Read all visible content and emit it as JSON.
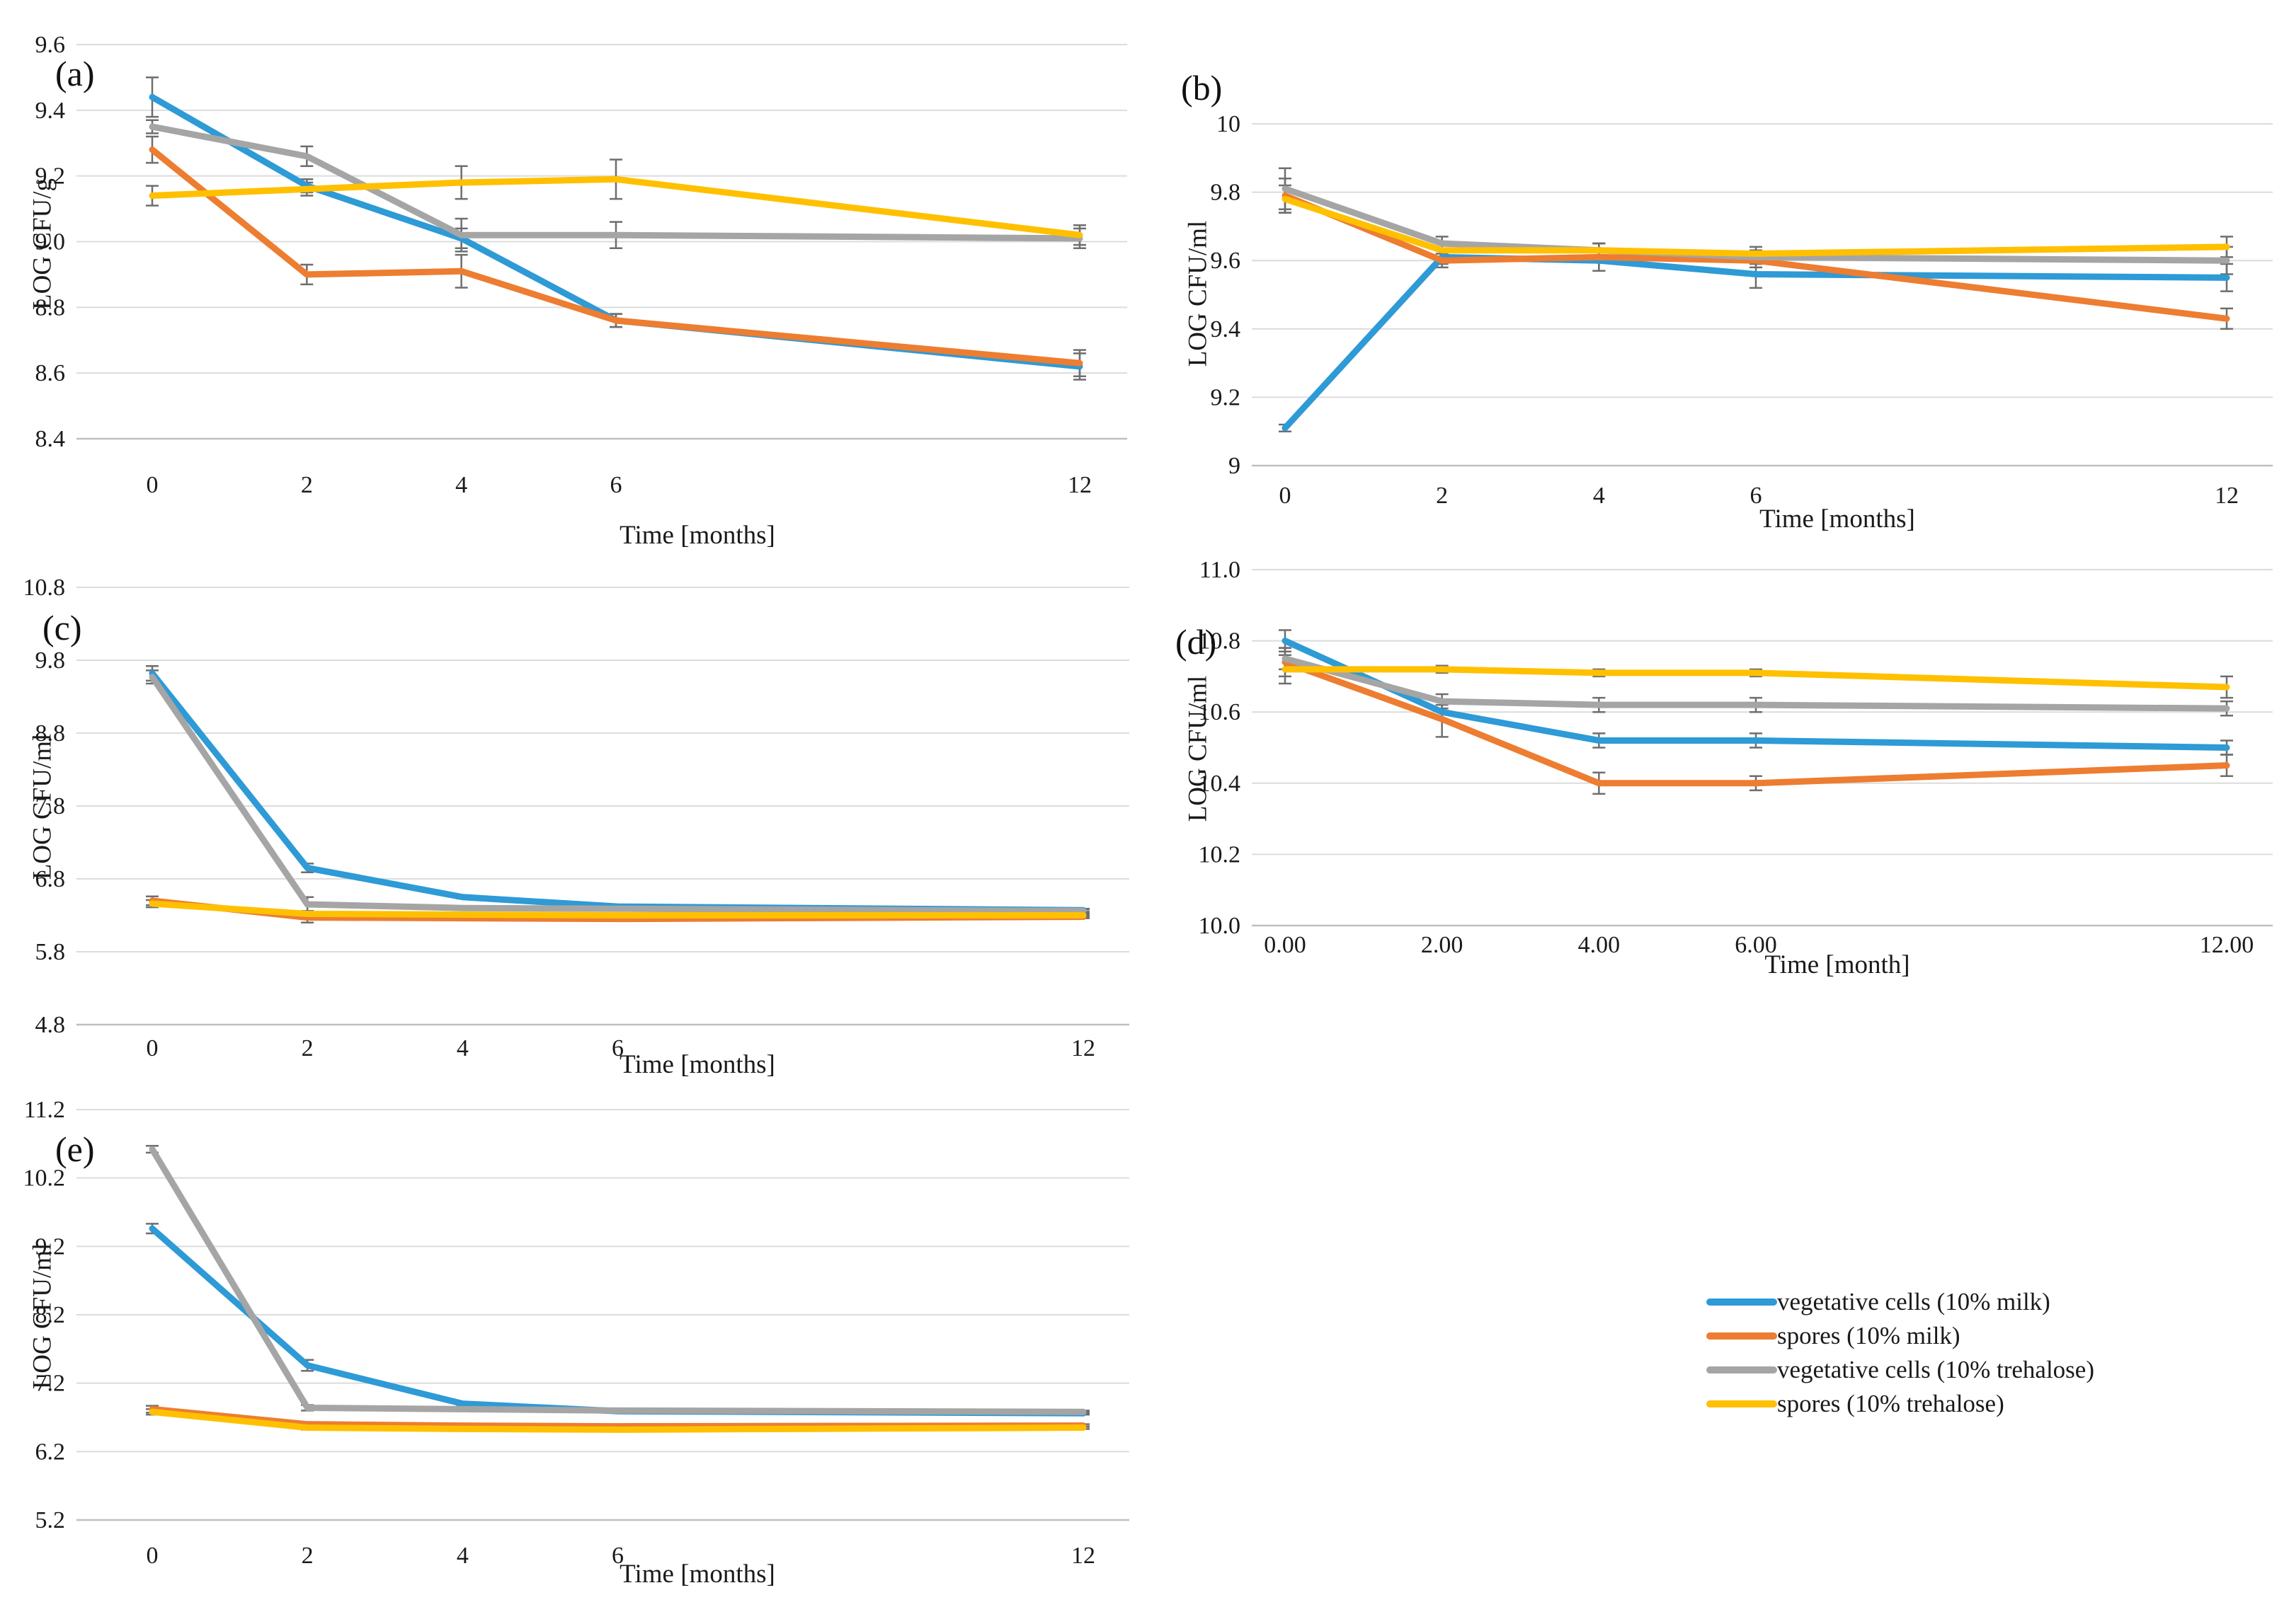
{
  "figure": {
    "background": "#ffffff",
    "description": "Five line charts (a-e) of LOG CFU counts over storage time with error bars, plus legend"
  },
  "colors": {
    "blue": "#2E9AD6",
    "orange": "#ED7D31",
    "gray": "#A5A5A5",
    "yellow": "#FFC000",
    "error_bar": "#6E6E6E",
    "gridline": "#DCDCDC",
    "axis_line": "#BFBFBF",
    "text": "#1a1a1a"
  },
  "legend": {
    "position": "bottom-right",
    "items": [
      {
        "label": "vegetative cells (10% milk)",
        "color_key": "blue"
      },
      {
        "label": "spores (10% milk)",
        "color_key": "orange"
      },
      {
        "label": "vegetative cells (10% trehalose)",
        "color_key": "gray"
      },
      {
        "label": "spores (10% trehalose)",
        "color_key": "yellow"
      }
    ]
  },
  "chart_data": [
    {
      "id": "a",
      "panel_label": "(a)",
      "type": "line",
      "ylabel": "LOG CFU/g",
      "xlabel": "Time [months]",
      "x_months": [
        0,
        2,
        4,
        6,
        12
      ],
      "x_tick_labels": [
        "0",
        "2",
        "4",
        "6",
        "12"
      ],
      "ylim": [
        8.4,
        9.6
      ],
      "y_ticks": [
        8.4,
        8.6,
        8.8,
        9.0,
        9.2,
        9.4,
        9.6
      ],
      "y_tick_labels": [
        "8.4",
        "8.6",
        "8.8",
        "9.0",
        "9.2",
        "9.4",
        "9.6"
      ],
      "grid": true,
      "series": [
        {
          "name": "vegetative cells (10% milk)",
          "color_key": "blue",
          "values": [
            9.44,
            9.17,
            9.01,
            8.76,
            8.62
          ],
          "errors": [
            0.06,
            0.02,
            0.03,
            0.02,
            0.04
          ]
        },
        {
          "name": "spores (10% milk)",
          "color_key": "orange",
          "values": [
            9.28,
            8.9,
            8.91,
            8.76,
            8.63
          ],
          "errors": [
            0.04,
            0.03,
            0.05,
            0.02,
            0.04
          ]
        },
        {
          "name": "vegetative cells (10% trehalose)",
          "color_key": "gray",
          "values": [
            9.35,
            9.26,
            9.02,
            9.02,
            9.01
          ],
          "errors": [
            0.02,
            0.03,
            0.05,
            0.04,
            0.03
          ]
        },
        {
          "name": "spores (10% trehalose)",
          "color_key": "yellow",
          "values": [
            9.14,
            9.16,
            9.18,
            9.19,
            9.02
          ],
          "errors": [
            0.03,
            0.02,
            0.05,
            0.06,
            0.03
          ]
        }
      ]
    },
    {
      "id": "b",
      "panel_label": "(b)",
      "type": "line",
      "ylabel": "LOG CFU/ml",
      "xlabel": "Time [months]",
      "x_months": [
        0,
        2,
        4,
        6,
        12
      ],
      "x_tick_labels": [
        "0",
        "2",
        "4",
        "6",
        "12"
      ],
      "ylim": [
        9.0,
        10.0
      ],
      "y_ticks": [
        9.0,
        9.2,
        9.4,
        9.6,
        9.8,
        10.0
      ],
      "y_tick_labels": [
        "9",
        "9.2",
        "9.4",
        "9.6",
        "9.8",
        "10"
      ],
      "grid": true,
      "series": [
        {
          "name": "vegetative cells (10% milk)",
          "color_key": "blue",
          "values": [
            9.11,
            9.61,
            9.6,
            9.56,
            9.55
          ],
          "errors": [
            0.01,
            0.02,
            0.03,
            0.04,
            0.04
          ]
        },
        {
          "name": "spores (10% milk)",
          "color_key": "orange",
          "values": [
            9.79,
            9.6,
            9.61,
            9.6,
            9.43
          ],
          "errors": [
            0.05,
            0.02,
            0.04,
            0.02,
            0.03
          ]
        },
        {
          "name": "vegetative cells (10% trehalose)",
          "color_key": "gray",
          "values": [
            9.81,
            9.65,
            9.63,
            9.61,
            9.6
          ],
          "errors": [
            0.06,
            0.02,
            0.02,
            0.02,
            0.04
          ]
        },
        {
          "name": "spores (10% trehalose)",
          "color_key": "yellow",
          "values": [
            9.78,
            9.63,
            9.63,
            9.62,
            9.64
          ],
          "errors": [
            0.04,
            0.02,
            0.02,
            0.02,
            0.03
          ]
        }
      ]
    },
    {
      "id": "c",
      "panel_label": "(c)",
      "type": "line",
      "ylabel": "LOG CFU/ml",
      "xlabel": "Time [months]",
      "x_months": [
        0,
        2,
        4,
        6,
        12
      ],
      "x_tick_labels": [
        "0",
        "2",
        "4",
        "6",
        "12"
      ],
      "ylim": [
        4.8,
        10.8
      ],
      "y_ticks": [
        4.8,
        5.8,
        6.8,
        7.8,
        8.8,
        9.8,
        10.8
      ],
      "y_tick_labels": [
        "4.8",
        "5.8",
        "6.8",
        "7.8",
        "8.8",
        "9.8",
        "10.8"
      ],
      "grid": true,
      "series": [
        {
          "name": "vegetative cells (10% milk)",
          "color_key": "blue",
          "values": [
            9.62,
            6.95,
            6.55,
            6.42,
            6.37
          ],
          "errors": [
            0.1,
            0.06,
            0.02,
            0.02,
            0.02
          ]
        },
        {
          "name": "spores (10% milk)",
          "color_key": "orange",
          "values": [
            6.5,
            6.27,
            6.26,
            6.25,
            6.28
          ],
          "errors": [
            0.06,
            0.07,
            0.02,
            0.02,
            0.02
          ]
        },
        {
          "name": "vegetative cells (10% trehalose)",
          "color_key": "gray",
          "values": [
            9.57,
            6.45,
            6.4,
            6.39,
            6.36
          ],
          "errors": [
            0.09,
            0.1,
            0.02,
            0.02,
            0.02
          ]
        },
        {
          "name": "spores (10% trehalose)",
          "color_key": "yellow",
          "values": [
            6.46,
            6.32,
            6.31,
            6.3,
            6.3
          ],
          "errors": [
            0.05,
            0.04,
            0.02,
            0.02,
            0.02
          ]
        }
      ]
    },
    {
      "id": "d",
      "panel_label": "(d)",
      "type": "line",
      "ylabel": "LOG CFU/ml",
      "xlabel": "Time [month]",
      "x_months": [
        0,
        2,
        4,
        6,
        12
      ],
      "x_tick_labels": [
        "0.00",
        "2.00",
        "4.00",
        "6.00",
        "12.00"
      ],
      "ylim": [
        10.0,
        11.0
      ],
      "y_ticks": [
        10.0,
        10.2,
        10.4,
        10.6,
        10.8,
        11.0
      ],
      "y_tick_labels": [
        "10.0",
        "10.2",
        "10.4",
        "10.6",
        "10.8",
        "11.0"
      ],
      "grid": true,
      "series": [
        {
          "name": "vegetative cells (10% milk)",
          "color_key": "blue",
          "values": [
            10.8,
            10.6,
            10.52,
            10.52,
            10.5
          ],
          "errors": [
            0.03,
            0.02,
            0.02,
            0.02,
            0.02
          ]
        },
        {
          "name": "spores (10% milk)",
          "color_key": "orange",
          "values": [
            10.74,
            10.58,
            10.4,
            10.4,
            10.45
          ],
          "errors": [
            0.04,
            0.05,
            0.03,
            0.02,
            0.03
          ]
        },
        {
          "name": "vegetative cells (10% trehalose)",
          "color_key": "gray",
          "values": [
            10.75,
            10.63,
            10.62,
            10.62,
            10.61
          ],
          "errors": [
            0.03,
            0.02,
            0.02,
            0.02,
            0.02
          ]
        },
        {
          "name": "spores (10% trehalose)",
          "color_key": "yellow",
          "values": [
            10.72,
            10.72,
            10.71,
            10.71,
            10.67
          ],
          "errors": [
            0.04,
            0.01,
            0.01,
            0.01,
            0.03
          ]
        }
      ]
    },
    {
      "id": "e",
      "panel_label": "(e)",
      "type": "line",
      "ylabel": "LOG CFU/ml",
      "xlabel": "Time [months]",
      "x_months": [
        0,
        2,
        4,
        6,
        12
      ],
      "x_tick_labels": [
        "0",
        "2",
        "4",
        "6",
        "12"
      ],
      "ylim": [
        5.2,
        11.2
      ],
      "y_ticks": [
        5.2,
        6.2,
        7.2,
        8.2,
        9.2,
        10.2,
        11.2
      ],
      "y_tick_labels": [
        "5.2",
        "6.2",
        "7.2",
        "8.2",
        "9.2",
        "10.2",
        "11.2"
      ],
      "grid": true,
      "series": [
        {
          "name": "vegetative cells (10% milk)",
          "color_key": "blue",
          "values": [
            9.46,
            7.46,
            6.9,
            6.79,
            6.76
          ],
          "errors": [
            0.07,
            0.08,
            0.02,
            0.02,
            0.02
          ]
        },
        {
          "name": "spores (10% milk)",
          "color_key": "orange",
          "values": [
            6.82,
            6.6,
            6.58,
            6.57,
            6.58
          ],
          "errors": [
            0.05,
            0.03,
            0.02,
            0.02,
            0.02
          ]
        },
        {
          "name": "vegetative cells (10% trehalose)",
          "color_key": "gray",
          "values": [
            10.62,
            6.84,
            6.82,
            6.8,
            6.78
          ],
          "errors": [
            0.05,
            0.04,
            0.02,
            0.02,
            0.02
          ]
        },
        {
          "name": "spores (10% trehalose)",
          "color_key": "yellow",
          "values": [
            6.78,
            6.55,
            6.53,
            6.52,
            6.55
          ],
          "errors": [
            0.04,
            0.03,
            0.02,
            0.02,
            0.02
          ]
        }
      ]
    }
  ]
}
